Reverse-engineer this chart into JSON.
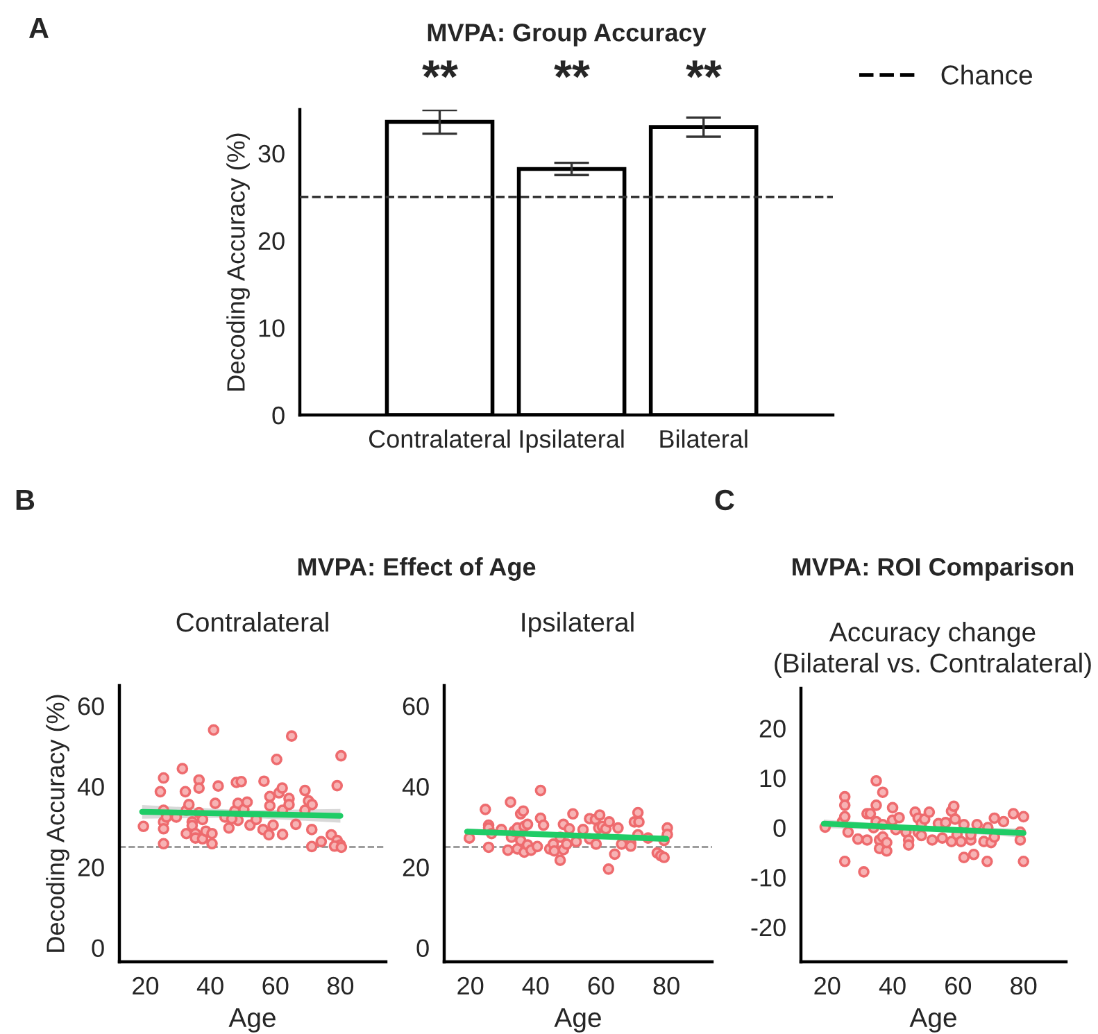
{
  "chart_data": [
    {
      "type": "bar",
      "title": "MVPA: Group Accuracy",
      "ylabel": "Decoding Accuracy (%)",
      "categories": [
        "Contralateral",
        "Ipsilateral",
        "Bilateral"
      ],
      "values": [
        33.6,
        28.2,
        33.0
      ],
      "errors": [
        1.35,
        0.7,
        1.1
      ],
      "color": "#ffffff",
      "ylim": [
        0,
        35
      ],
      "yticks": [
        0,
        10,
        20,
        30
      ],
      "ref_lines": [
        {
          "axis": "y",
          "value": 25,
          "label": "Chance",
          "color": "#333333",
          "line_style": "dashed"
        }
      ],
      "legend": "top right",
      "annotations": [
        "A",
        "**",
        "**",
        "**"
      ]
    },
    {
      "type": "scatter",
      "title": "MVPA: Effect of Age",
      "subtitle": "Contralateral",
      "xlabel": "Age",
      "ylabel": "Decoding Accuracy (%)",
      "xlim": [
        12,
        94
      ],
      "xticks": [
        20,
        40,
        60,
        80
      ],
      "ylim": [
        -3.5,
        65
      ],
      "yticks": [
        0,
        20,
        40,
        60
      ],
      "ref_lines": [
        {
          "axis": "y",
          "value": 25,
          "color": "#888888",
          "line_style": "dashed"
        }
      ],
      "annotations": [
        "B"
      ],
      "series": [
        {
          "type": "scatter",
          "color": "#ee6b6e",
          "marker": "circle",
          "x": [
            19.4,
            25.6,
            24.6,
            25.6,
            25.6,
            25.6,
            25.6,
            26.5,
            29.5,
            31.4,
            32.3,
            32.6,
            33.4,
            32.6,
            34.4,
            34.4,
            35.4,
            35.4,
            36.5,
            36.5,
            36.5,
            37.6,
            37.6,
            38.6,
            40.5,
            40.5,
            41.5,
            42.4,
            44.5,
            45.7,
            47.5,
            48.0,
            49.5,
            48.5,
            48.5,
            50.3,
            51.3,
            52.2,
            54.1,
            56.5,
            56.2,
            58.3,
            58.3,
            58.0,
            59.3,
            60.4,
            61.1,
            62.1,
            62.2,
            62.2,
            64.2,
            64.2,
            66.3,
            69.1,
            69.1,
            70.2,
            71.3,
            71.2,
            71.2,
            74.1,
            77.2,
            79.0,
            80.2,
            79.0,
            80.0,
            78.2,
            80.3,
            46.6,
            41.0,
            65.0
          ],
          "values": [
            30.1,
            42.1,
            38.7,
            34.1,
            31.2,
            29.5,
            25.8,
            32.4,
            32.4,
            44.4,
            38.7,
            34.1,
            35.5,
            28.3,
            31.2,
            30.3,
            28.3,
            27.2,
            41.6,
            39.6,
            33.5,
            31.8,
            27.0,
            28.9,
            28.3,
            25.8,
            35.8,
            40.1,
            32.4,
            29.7,
            33.9,
            41.0,
            41.2,
            35.8,
            31.6,
            34.3,
            36.1,
            30.4,
            31.8,
            41.3,
            29.3,
            37.5,
            35.2,
            28.0,
            30.4,
            46.7,
            38.4,
            39.6,
            34.1,
            28.1,
            37.0,
            35.5,
            30.6,
            39.0,
            34.1,
            36.4,
            35.5,
            29.3,
            25.1,
            26.3,
            28.0,
            40.2,
            47.6,
            26.6,
            25.5,
            25.2,
            24.9,
            32.0,
            54.0,
            52.5
          ]
        },
        {
          "type": "line",
          "color": "#1fcc66",
          "x": [
            19,
            50,
            80
          ],
          "values": [
            33.7,
            33.2,
            32.7
          ],
          "lower": [
            32.0,
            32.3,
            31.0
          ],
          "upper": [
            35.4,
            34.1,
            34.4
          ]
        }
      ]
    },
    {
      "type": "scatter",
      "subtitle": "Ipsilateral",
      "xlabel": "Age",
      "xlim": [
        12,
        94
      ],
      "xticks": [
        20,
        40,
        60,
        80
      ],
      "ylim": [
        -3.5,
        65
      ],
      "yticks": [
        0,
        20,
        40,
        60
      ],
      "ref_lines": [
        {
          "axis": "y",
          "value": 25,
          "color": "#888888",
          "line_style": "dashed"
        }
      ],
      "series": [
        {
          "type": "scatter",
          "color": "#ee6b6e",
          "marker": "circle",
          "x": [
            19.7,
            24.6,
            25.6,
            25.6,
            25.6,
            26.5,
            29.5,
            31.5,
            32.3,
            32.6,
            33.4,
            34.4,
            34.4,
            35.4,
            35.4,
            36.2,
            36.5,
            36.5,
            37.5,
            37.5,
            38.6,
            40.5,
            41.5,
            41.5,
            42.4,
            44.3,
            45.4,
            45.7,
            47.5,
            47.5,
            48.5,
            48.5,
            49.5,
            50.3,
            51.4,
            52.4,
            54.5,
            56.5,
            56.5,
            58.3,
            58.5,
            59.3,
            59.6,
            60.4,
            61.5,
            62.5,
            62.3,
            64.2,
            65.2,
            66.3,
            69.1,
            69.1,
            70.2,
            71.3,
            71.3,
            71.6,
            74.4,
            77.2,
            78.3,
            79.3,
            79.3,
            80.3,
            80.3
          ],
          "values": [
            27.2,
            34.3,
            30.4,
            29.7,
            24.9,
            28.3,
            29.3,
            24.2,
            36.1,
            27.4,
            28.9,
            24.5,
            29.7,
            33.2,
            26.6,
            33.9,
            23.7,
            30.1,
            25.5,
            30.6,
            24.2,
            25.1,
            39.0,
            32.1,
            30.4,
            24.5,
            25.7,
            24.0,
            21.7,
            27.4,
            30.6,
            24.3,
            25.7,
            29.5,
            33.2,
            26.3,
            29.3,
            32.0,
            27.0,
            31.8,
            25.7,
            29.7,
            32.9,
            30.1,
            29.5,
            31.2,
            19.5,
            23.2,
            29.7,
            25.7,
            26.0,
            25.2,
            31.2,
            33.5,
            28.0,
            31.2,
            27.2,
            23.5,
            22.8,
            22.4,
            26.6,
            29.7,
            28.1
          ]
        },
        {
          "type": "line",
          "color": "#1fcc66",
          "x": [
            19,
            50,
            80
          ],
          "values": [
            28.8,
            27.9,
            27.0
          ],
          "lower": [
            28.0,
            27.5,
            26.2
          ],
          "upper": [
            29.6,
            28.3,
            27.8
          ]
        }
      ]
    },
    {
      "type": "scatter",
      "title": "MVPA: ROI Comparison",
      "subtitle": "Accuracy change\n(Bilateral vs. Contralateral)",
      "xlabel": "Age",
      "xlim": [
        12,
        93
      ],
      "xticks": [
        20,
        40,
        60,
        80
      ],
      "ylim": [
        -27,
        28
      ],
      "yticks": [
        -20,
        -10,
        0,
        10,
        20
      ],
      "annotations": [
        "C"
      ],
      "series": [
        {
          "type": "scatter",
          "color": "#ee6b6e",
          "marker": "circle",
          "x": [
            19.4,
            24.7,
            25.4,
            25.4,
            25.4,
            25.4,
            26.4,
            29.4,
            31.2,
            32.2,
            32.2,
            33.2,
            34.2,
            35.0,
            35.0,
            35.0,
            36.0,
            36.0,
            37.0,
            37.0,
            37.0,
            38.2,
            38.2,
            40.0,
            40.0,
            41.0,
            42.0,
            44.1,
            44.9,
            44.9,
            46.9,
            47.8,
            47.8,
            48.8,
            48.8,
            49.8,
            51.2,
            52.1,
            54.0,
            55.2,
            56.2,
            58.0,
            58.0,
            58.7,
            59.1,
            59.7,
            60.9,
            61.8,
            61.8,
            63.9,
            63.9,
            64.8,
            65.8,
            67.9,
            68.9,
            69.1,
            70.1,
            71.1,
            71.1,
            73.9,
            76.9,
            79.0,
            79.0,
            80.0,
            80.0
          ],
          "values": [
            0.1,
            1.2,
            6.2,
            4.5,
            2.2,
            -6.8,
            -0.9,
            -2.3,
            -8.9,
            2.8,
            -2.5,
            2.8,
            0.0,
            9.4,
            4.5,
            1.2,
            -2.5,
            -4.2,
            7.1,
            0.6,
            -1.9,
            -4.7,
            -3.0,
            4.0,
            1.5,
            -0.4,
            2.0,
            -0.9,
            -2.5,
            -3.5,
            3.1,
            -0.9,
            1.9,
            0.8,
            -1.6,
            1.7,
            3.1,
            -2.5,
            0.8,
            -2.1,
            1.0,
            -2.8,
            3.3,
            4.3,
            1.7,
            -1.4,
            -2.8,
            -6.0,
            0.6,
            -2.5,
            -1.4,
            -5.4,
            0.6,
            -2.8,
            -6.8,
            0.0,
            -3.0,
            1.9,
            -1.9,
            1.2,
            2.8,
            -0.9,
            -2.5,
            2.2,
            -6.8
          ]
        },
        {
          "type": "line",
          "color": "#1fcc66",
          "x": [
            19,
            50,
            80
          ],
          "values": [
            0.8,
            -0.2,
            -1.1
          ],
          "lower": [
            -0.1,
            -0.6,
            -2.0
          ],
          "upper": [
            1.6,
            0.2,
            -0.2
          ]
        }
      ]
    }
  ]
}
